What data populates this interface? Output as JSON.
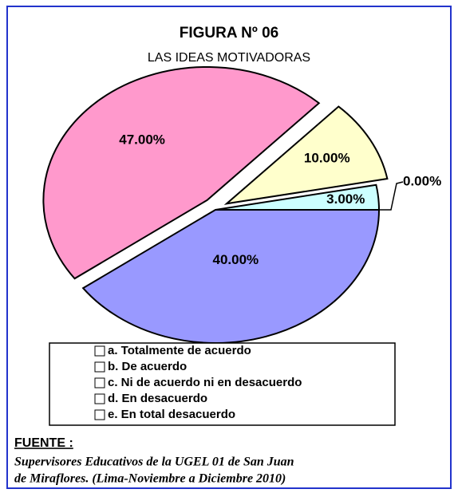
{
  "chart_data": {
    "type": "pie",
    "title": "FIGURA Nº 06",
    "subtitle": "LAS IDEAS MOTIVADORAS",
    "categories": [
      "a. Totalmente de acuerdo",
      "b. De acuerdo",
      "c. Ni de acuerdo ni en desacuerdo",
      "d. En desacuerdo",
      "e. En total desacuerdo"
    ],
    "values": [
      40,
      47,
      10,
      3,
      0
    ],
    "value_labels": [
      "40.00%",
      "47.00%",
      "10.00%",
      "3.00%",
      "0.00%"
    ],
    "colors": [
      "#9999ff",
      "#ff99cc",
      "#ffffcc",
      "#ccffff",
      "#ffffff"
    ],
    "exploded": [
      false,
      true,
      true,
      false,
      false
    ]
  },
  "source": {
    "label": "FUENTE :",
    "lines": [
      "Supervisores Educativos de la UGEL 01 de San Juan",
      "de Miraflores. (Lima-Noviembre a Diciembre 2010)"
    ]
  }
}
